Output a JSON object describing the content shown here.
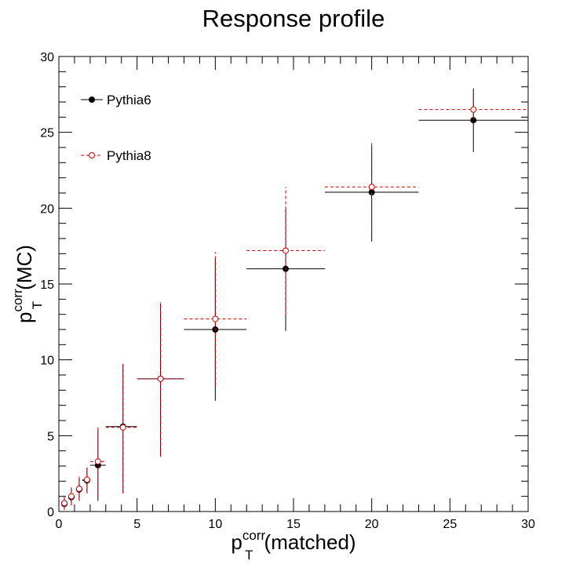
{
  "chart_data": {
    "type": "scatter",
    "title": "Response profile",
    "xlabel": {
      "base": "p",
      "sup": "corr",
      "sub": "T",
      "rest": "(matched)"
    },
    "ylabel": {
      "base": "p",
      "sup": "corr",
      "sub": "T",
      "rest": "(MC)"
    },
    "xlim": [
      0,
      30
    ],
    "ylim": [
      0,
      30
    ],
    "xticks": [
      "0",
      "5",
      "10",
      "15",
      "20",
      "25",
      "30"
    ],
    "yticks": [
      "0",
      "5",
      "10",
      "15",
      "20",
      "25",
      "30"
    ],
    "legend_position": "top-left",
    "series": [
      {
        "name": "Pythia6",
        "color": "#000000",
        "marker": "filled-circle",
        "line": "solid",
        "points": [
          {
            "x": 0.35,
            "xlo": 0.2,
            "xhi": 0.5,
            "y": 0.5,
            "ylo": 0.1,
            "yhi": 0.9
          },
          {
            "x": 0.8,
            "xlo": 0.6,
            "xhi": 1.0,
            "y": 0.95,
            "ylo": 0.4,
            "yhi": 1.5
          },
          {
            "x": 1.3,
            "xlo": 1.1,
            "xhi": 1.5,
            "y": 1.45,
            "ylo": 0.7,
            "yhi": 2.2
          },
          {
            "x": 1.8,
            "xlo": 1.5,
            "xhi": 2.0,
            "y": 2.05,
            "ylo": 1.2,
            "yhi": 2.9
          },
          {
            "x": 2.5,
            "xlo": 2.0,
            "xhi": 3.0,
            "y": 3.05,
            "ylo": 0.7,
            "yhi": 5.4
          },
          {
            "x": 4.1,
            "xlo": 3.0,
            "xhi": 5.0,
            "y": 5.6,
            "ylo": 1.2,
            "yhi": 9.7
          },
          {
            "x": 6.5,
            "xlo": 5.0,
            "xhi": 8.0,
            "y": 8.75,
            "ylo": 3.7,
            "yhi": 13.7
          },
          {
            "x": 10.0,
            "xlo": 8.0,
            "xhi": 12.0,
            "y": 12.0,
            "ylo": 7.3,
            "yhi": 16.7
          },
          {
            "x": 14.5,
            "xlo": 12.0,
            "xhi": 17.0,
            "y": 16.0,
            "ylo": 11.9,
            "yhi": 20.1
          },
          {
            "x": 20.0,
            "xlo": 17.0,
            "xhi": 23.0,
            "y": 21.05,
            "ylo": 17.8,
            "yhi": 24.1
          },
          {
            "x": 26.5,
            "xlo": 23.0,
            "xhi": 30.0,
            "y": 25.8,
            "ylo": 23.7,
            "yhi": 27.9
          }
        ]
      },
      {
        "name": "Pythia8",
        "color": "#cc0000",
        "marker": "open-circle",
        "line": "dashed",
        "points": [
          {
            "x": 0.35,
            "xlo": 0.2,
            "xhi": 0.5,
            "y": 0.55,
            "ylo": 0.1,
            "yhi": 1.0
          },
          {
            "x": 0.8,
            "xlo": 0.6,
            "xhi": 1.0,
            "y": 1.0,
            "ylo": 0.4,
            "yhi": 1.6
          },
          {
            "x": 1.3,
            "xlo": 1.1,
            "xhi": 1.5,
            "y": 1.5,
            "ylo": 0.7,
            "yhi": 2.3
          },
          {
            "x": 1.8,
            "xlo": 1.5,
            "xhi": 2.0,
            "y": 2.1,
            "ylo": 1.2,
            "yhi": 3.0
          },
          {
            "x": 2.5,
            "xlo": 2.0,
            "xhi": 3.0,
            "y": 3.3,
            "ylo": 1.0,
            "yhi": 5.6
          },
          {
            "x": 4.1,
            "xlo": 3.0,
            "xhi": 5.0,
            "y": 5.55,
            "ylo": 1.2,
            "yhi": 9.9
          },
          {
            "x": 6.5,
            "xlo": 5.0,
            "xhi": 8.0,
            "y": 8.75,
            "ylo": 3.6,
            "yhi": 13.8
          },
          {
            "x": 10.0,
            "xlo": 8.0,
            "xhi": 12.0,
            "y": 12.7,
            "ylo": 8.3,
            "yhi": 17.1
          },
          {
            "x": 14.5,
            "xlo": 12.0,
            "xhi": 17.0,
            "y": 17.2,
            "ylo": 13.0,
            "yhi": 21.4
          },
          {
            "x": 20.0,
            "xlo": 17.0,
            "xhi": 23.0,
            "y": 21.4,
            "ylo": 18.3,
            "yhi": 24.4
          },
          {
            "x": 26.5,
            "xlo": 23.0,
            "xhi": 30.0,
            "y": 26.5,
            "ylo": 25.5,
            "yhi": 27.6
          }
        ]
      }
    ]
  }
}
